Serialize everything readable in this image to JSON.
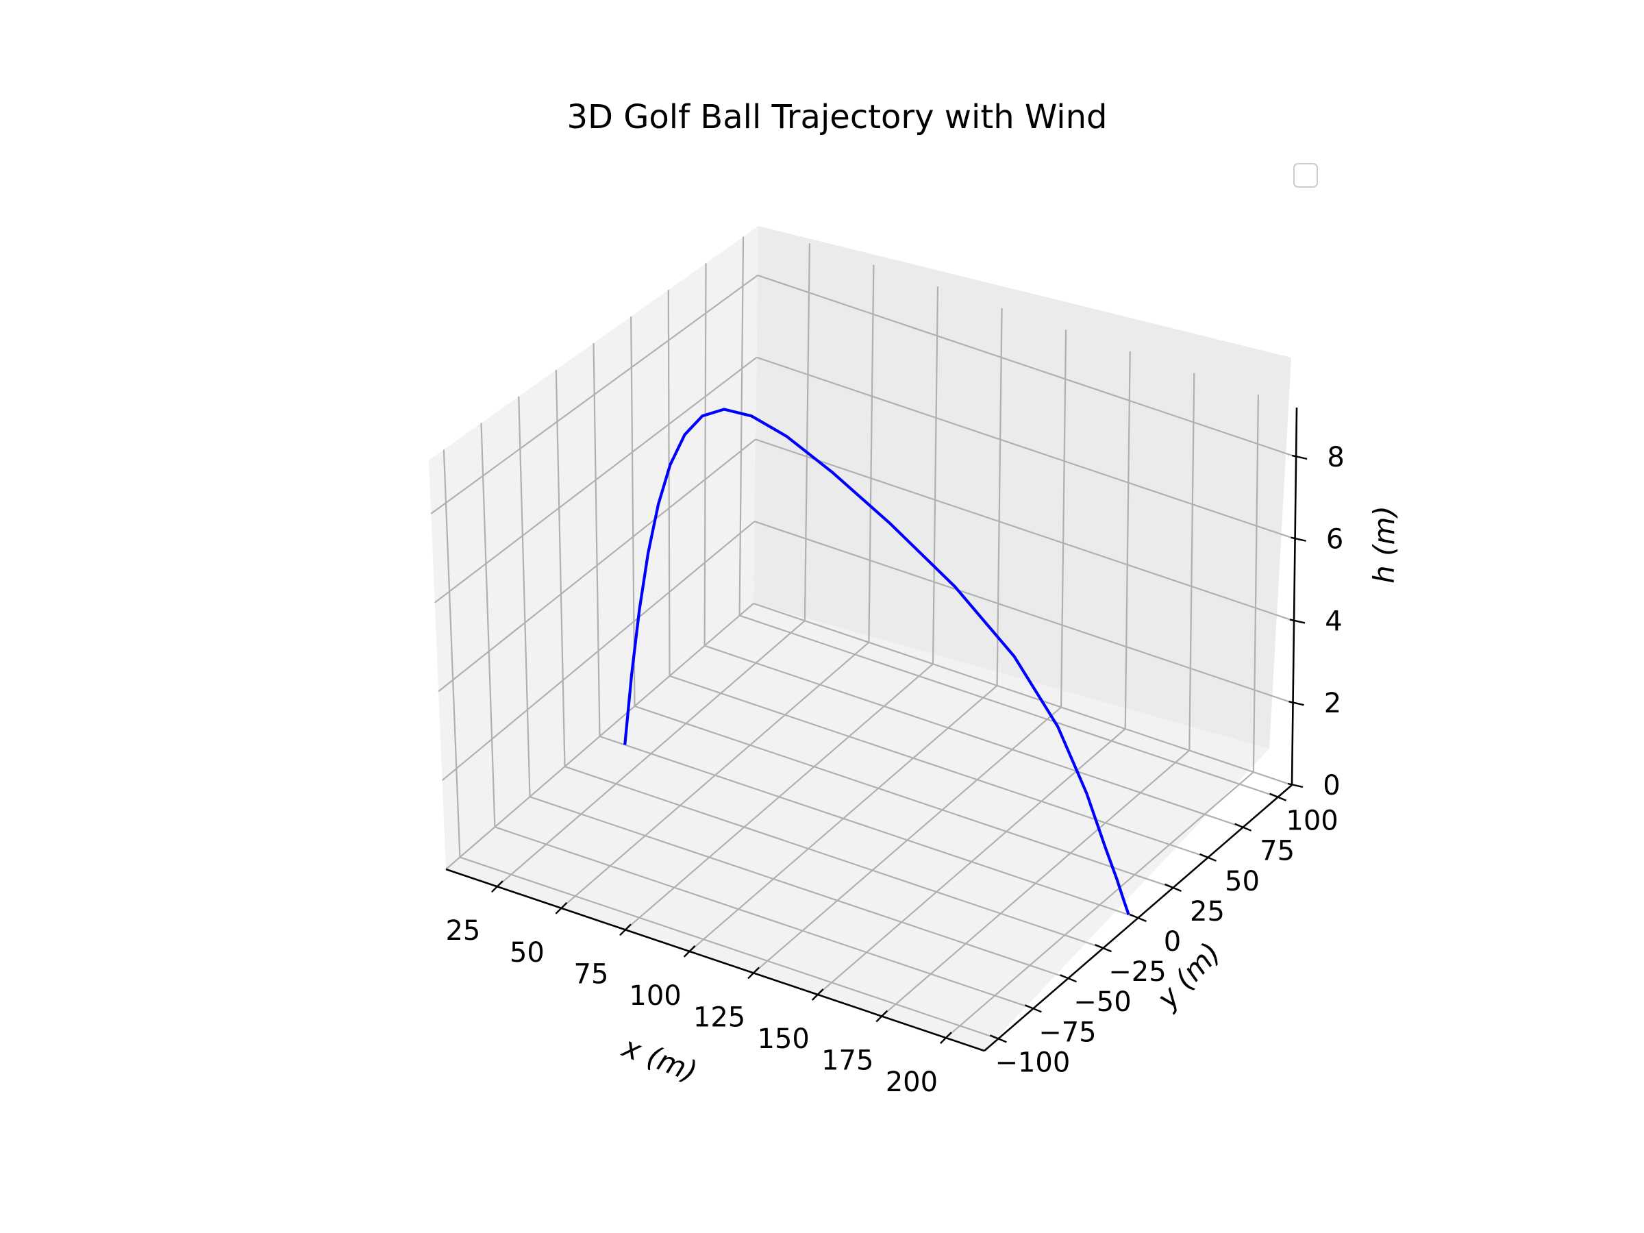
{
  "chart_data": {
    "type": "line3d",
    "title": "3D Golf Ball Trajectory with Wind",
    "xlabel": "x (m)",
    "ylabel": "y (m)",
    "zlabel": "h (m)",
    "xlim": [
      5,
      215
    ],
    "ylim": [
      -110,
      110
    ],
    "zlim": [
      0,
      9.2
    ],
    "x_ticks": [
      25,
      50,
      75,
      100,
      125,
      150,
      175,
      200
    ],
    "y_ticks": [
      -100,
      -75,
      -50,
      -25,
      0,
      25,
      50,
      75,
      100
    ],
    "z_ticks": [
      0,
      2,
      4,
      6,
      8
    ],
    "x_tick_labels": [
      "25",
      "50",
      "75",
      "100",
      "125",
      "150",
      "175",
      "200"
    ],
    "y_tick_labels": [
      "−100",
      "−75",
      "−50",
      "−25",
      "0",
      "25",
      "50",
      "75",
      "100"
    ],
    "z_tick_labels": [
      "0",
      "2",
      "4",
      "6",
      "8"
    ],
    "grid": true,
    "legend": {
      "position": "upper right",
      "entries": []
    },
    "series": [
      {
        "color": "#0000ff",
        "x": [
          14.8,
          17.9,
          21.3,
          25.1,
          29.4,
          34.3,
          40.2,
          47.2,
          55.8,
          66.5,
          80.1,
          97.7,
          119.9,
          145.2,
          168.0,
          184.7,
          195.6,
          202.5,
          206.9,
          209.6,
          211.3
        ],
        "y": [
          0,
          0,
          0,
          0,
          0,
          0,
          0,
          0,
          0,
          0,
          0,
          0,
          0,
          0,
          0,
          0,
          0,
          0,
          0,
          0,
          0
        ],
        "z": [
          0.0,
          1.71,
          3.28,
          4.69,
          5.92,
          6.95,
          7.77,
          8.35,
          8.68,
          8.74,
          8.54,
          8.06,
          7.32,
          6.34,
          5.17,
          3.86,
          2.52,
          1.41,
          0.74,
          0.28,
          0.0
        ]
      }
    ]
  }
}
